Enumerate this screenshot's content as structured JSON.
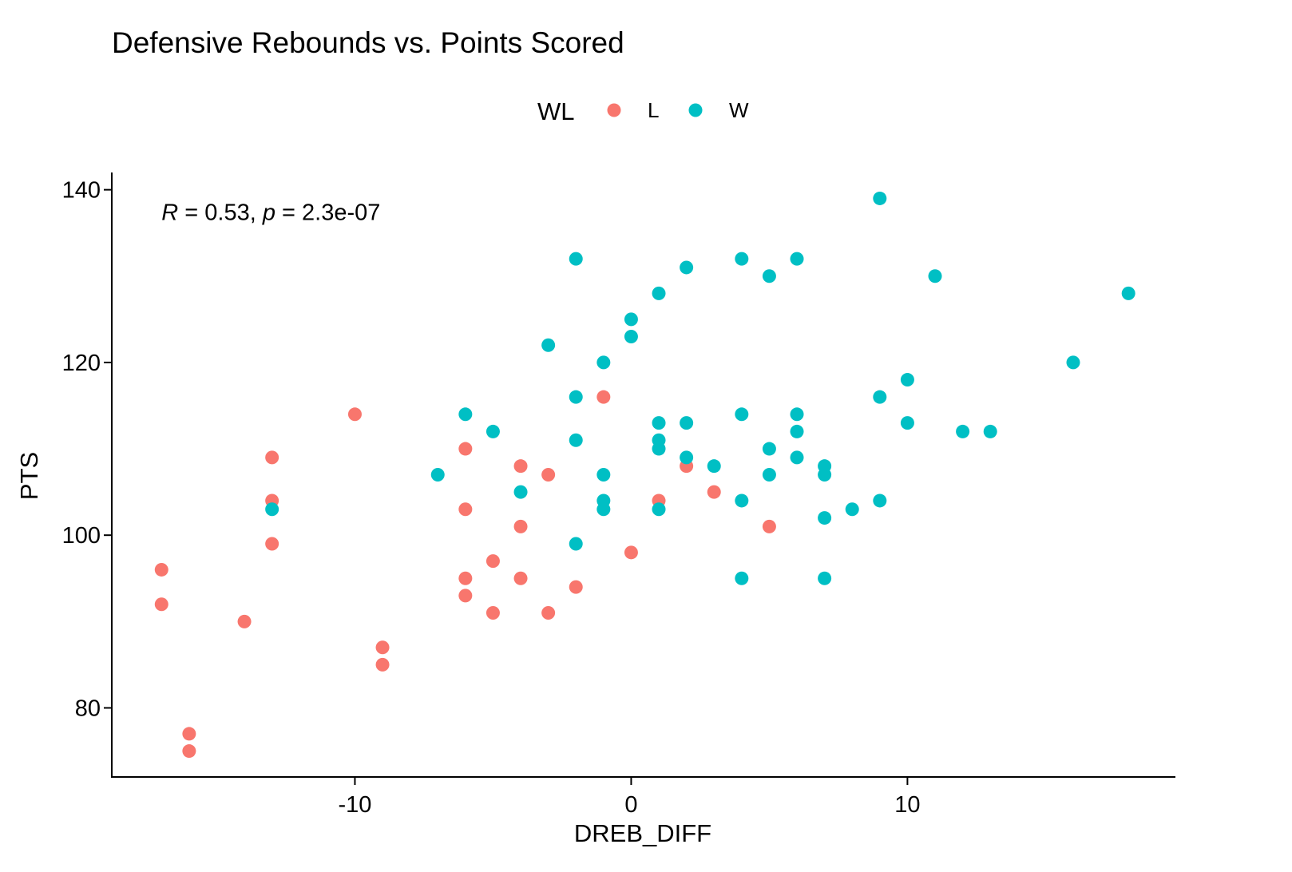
{
  "chart_data": {
    "type": "scatter",
    "title": "Defensive Rebounds vs. Points Scored",
    "xlabel": "DREB_DIFF",
    "ylabel": "PTS",
    "xlim": [
      -18.8,
      19.7
    ],
    "ylim": [
      72,
      142
    ],
    "x_ticks": [
      -10,
      0,
      10
    ],
    "y_ticks": [
      80,
      100,
      120,
      140
    ],
    "grid": false,
    "legend": {
      "title": "WL",
      "placement": "top",
      "entries": [
        {
          "label": "L",
          "color": "#F8766D"
        },
        {
          "label": "W",
          "color": "#00BFC4"
        }
      ]
    },
    "annotation": {
      "r_symbol": "R",
      "r_text": " = 0.53, ",
      "p_symbol": "p",
      "p_text": " = 2.3e-07",
      "x": -17,
      "y": 136.5
    },
    "series": [
      {
        "name": "L",
        "color": "#F8766D",
        "points": [
          [
            -17,
            96
          ],
          [
            -17,
            92
          ],
          [
            -16,
            77
          ],
          [
            -16,
            75
          ],
          [
            -14,
            90
          ],
          [
            -13,
            109
          ],
          [
            -13,
            104
          ],
          [
            -13,
            99
          ],
          [
            -10,
            114
          ],
          [
            -9,
            87
          ],
          [
            -9,
            85
          ],
          [
            -6,
            110
          ],
          [
            -6,
            103
          ],
          [
            -6,
            95
          ],
          [
            -6,
            93
          ],
          [
            -5,
            97
          ],
          [
            -5,
            91
          ],
          [
            -4,
            108
          ],
          [
            -4,
            101
          ],
          [
            -4,
            95
          ],
          [
            -3,
            107
          ],
          [
            -3,
            91
          ],
          [
            -2,
            94
          ],
          [
            -1,
            116
          ],
          [
            0,
            98
          ],
          [
            1,
            104
          ],
          [
            2,
            108
          ],
          [
            3,
            105
          ],
          [
            5,
            101
          ]
        ]
      },
      {
        "name": "W",
        "color": "#00BFC4",
        "points": [
          [
            -13,
            103
          ],
          [
            -7,
            107
          ],
          [
            -6,
            114
          ],
          [
            -5,
            112
          ],
          [
            -4,
            105
          ],
          [
            -3,
            122
          ],
          [
            -2,
            132
          ],
          [
            -2,
            116
          ],
          [
            -2,
            111
          ],
          [
            -2,
            99
          ],
          [
            -1,
            120
          ],
          [
            -1,
            107
          ],
          [
            -1,
            104
          ],
          [
            -1,
            103
          ],
          [
            0,
            125
          ],
          [
            0,
            123
          ],
          [
            1,
            128
          ],
          [
            1,
            113
          ],
          [
            1,
            111
          ],
          [
            1,
            110
          ],
          [
            1,
            103
          ],
          [
            2,
            131
          ],
          [
            2,
            113
          ],
          [
            2,
            109
          ],
          [
            3,
            108
          ],
          [
            4,
            132
          ],
          [
            4,
            114
          ],
          [
            4,
            104
          ],
          [
            4,
            95
          ],
          [
            5,
            130
          ],
          [
            5,
            110
          ],
          [
            5,
            107
          ],
          [
            6,
            132
          ],
          [
            6,
            114
          ],
          [
            6,
            112
          ],
          [
            6,
            109
          ],
          [
            7,
            108
          ],
          [
            7,
            107
          ],
          [
            7,
            102
          ],
          [
            7,
            95
          ],
          [
            8,
            103
          ],
          [
            9,
            139
          ],
          [
            9,
            116
          ],
          [
            9,
            104
          ],
          [
            10,
            118
          ],
          [
            10,
            113
          ],
          [
            11,
            130
          ],
          [
            12,
            112
          ],
          [
            13,
            112
          ],
          [
            16,
            120
          ],
          [
            18,
            128
          ]
        ]
      }
    ]
  }
}
